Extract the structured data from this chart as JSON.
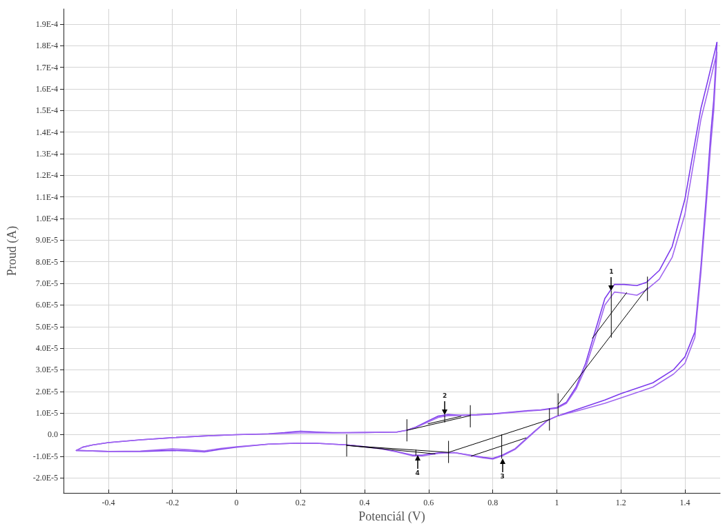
{
  "chart_data": {
    "type": "line",
    "xlabel": "Potenciál (V)",
    "ylabel": "Proud (A)",
    "xlim": [
      -0.54,
      1.51
    ],
    "ylim": [
      -2.7e-05,
      0.000197
    ],
    "xticks": [
      -0.4,
      -0.2,
      0,
      0.2,
      0.4,
      0.6,
      0.8,
      1,
      1.2,
      1.4
    ],
    "yticks": [
      {
        "value": -2e-05,
        "label": "-2.0E-5"
      },
      {
        "value": -1e-05,
        "label": "-1.0E-5"
      },
      {
        "value": 0,
        "label": "0.0"
      },
      {
        "value": 1e-05,
        "label": "1.0E-5"
      },
      {
        "value": 2e-05,
        "label": "2.0E-5"
      },
      {
        "value": 3e-05,
        "label": "3.0E-5"
      },
      {
        "value": 4e-05,
        "label": "4.0E-5"
      },
      {
        "value": 5e-05,
        "label": "5.0E-5"
      },
      {
        "value": 6e-05,
        "label": "6.0E-5"
      },
      {
        "value": 7e-05,
        "label": "7.0E-5"
      },
      {
        "value": 8e-05,
        "label": "8.0E-5"
      },
      {
        "value": 9e-05,
        "label": "9.0E-5"
      },
      {
        "value": 0.0001,
        "label": "1.0E-4"
      },
      {
        "value": 0.00011,
        "label": "1.1E-4"
      },
      {
        "value": 0.00012,
        "label": "1.2E-4"
      },
      {
        "value": 0.00013,
        "label": "1.3E-4"
      },
      {
        "value": 0.00014,
        "label": "1.4E-4"
      },
      {
        "value": 0.00015,
        "label": "1.5E-4"
      },
      {
        "value": 0.00016,
        "label": "1.6E-4"
      },
      {
        "value": 0.00017,
        "label": "1.7E-4"
      },
      {
        "value": 0.00018,
        "label": "1.8E-4"
      },
      {
        "value": 0.00019,
        "label": "1.9E-4"
      }
    ],
    "grid": true,
    "series": [
      {
        "color": "#7c3aed",
        "x": [
          -0.5,
          -0.48,
          -0.45,
          -0.4,
          -0.3,
          -0.2,
          -0.1,
          0,
          0.1,
          0.15,
          0.2,
          0.25,
          0.3,
          0.4,
          0.5,
          0.53,
          0.56,
          0.6,
          0.63,
          0.66,
          0.7,
          0.75,
          0.8,
          0.9,
          0.95,
          1.0,
          1.03,
          1.06,
          1.09,
          1.12,
          1.15,
          1.18,
          1.21,
          1.25,
          1.28,
          1.32,
          1.36,
          1.4,
          1.45,
          1.47,
          1.5
        ],
        "values": [
          -7.3e-06,
          -5.8e-06,
          -4.8e-06,
          -3.7e-06,
          -2.4e-06,
          -1.4e-06,
          -6e-07,
          0,
          4e-07,
          9e-07,
          1.6e-06,
          1.2e-06,
          9e-07,
          1e-06,
          1.2e-06,
          2e-06,
          3.5e-06,
          6.5e-06,
          8.6e-06,
          9.3e-06,
          9e-06,
          9.2e-06,
          9.6e-06,
          1.1e-05,
          1.15e-05,
          1.25e-05,
          1.5e-05,
          2.2e-05,
          3.3e-05,
          4.8e-05,
          6.3e-05,
          6.95e-05,
          6.95e-05,
          6.9e-05,
          7.05e-05,
          7.6e-05,
          8.7e-05,
          0.000109,
          0.000151,
          0.000163,
          0.0001815
        ]
      },
      {
        "color": "#7c3aed",
        "x": [
          -0.5,
          -0.4,
          -0.3,
          -0.2,
          -0.15,
          -0.1,
          -0.05,
          0,
          0.1,
          0.2,
          0.25,
          0.35,
          0.45,
          0.5,
          0.55,
          0.58,
          0.63,
          0.68,
          0.73,
          0.77,
          0.8,
          0.83,
          0.87,
          0.9,
          0.93,
          0.97,
          1.0,
          1.064,
          1.15,
          1.2,
          1.3,
          1.364,
          1.4,
          1.431,
          1.45,
          1.466,
          1.48,
          1.49,
          1.5
        ],
        "values": [
          -7.3e-06,
          -7.8e-06,
          -7.8e-06,
          -7.3e-06,
          -7.6e-06,
          -8e-06,
          -6.8e-06,
          -5.8e-06,
          -4.4e-06,
          -3.9e-06,
          -4e-06,
          -4.8e-06,
          -6.4e-06,
          -7.8e-06,
          -9.5e-06,
          -9.5e-06,
          -8.5e-06,
          -8.3e-06,
          -9.5e-06,
          -1.05e-05,
          -1.1e-05,
          -9.5e-06,
          -6.5e-06,
          -2.5e-06,
          1.5e-06,
          6.5e-06,
          8.5e-06,
          1.17e-05,
          1.6e-05,
          1.9e-05,
          2.4e-05,
          3e-05,
          3.6e-05,
          4.75e-05,
          7.8e-05,
          0.000109,
          0.000138,
          0.000155,
          0.0001815
        ]
      },
      {
        "color": "#a066f0",
        "x": [
          -0.5,
          -0.48,
          -0.45,
          -0.4,
          -0.3,
          -0.2,
          -0.1,
          0,
          0.1,
          0.15,
          0.2,
          0.25,
          0.3,
          0.4,
          0.5,
          0.53,
          0.56,
          0.6,
          0.63,
          0.66,
          0.7,
          0.75,
          0.8,
          0.9,
          0.95,
          1.0,
          1.03,
          1.06,
          1.09,
          1.12,
          1.15,
          1.18,
          1.21,
          1.25,
          1.28,
          1.32,
          1.36,
          1.4,
          1.45,
          1.47,
          1.5
        ],
        "values": [
          -7.3e-06,
          -5.8e-06,
          -4.8e-06,
          -3.7e-06,
          -2.4e-06,
          -1.4e-06,
          -6e-07,
          0,
          3e-07,
          6e-07,
          8e-07,
          8e-07,
          8e-07,
          1e-06,
          1.2e-06,
          2e-06,
          3.3e-06,
          6e-06,
          8e-06,
          8.8e-06,
          8.9e-06,
          9.1e-06,
          9.5e-06,
          1.08e-05,
          1.13e-05,
          1.22e-05,
          1.45e-05,
          2.1e-05,
          3.1e-05,
          4.5e-05,
          6e-05,
          6.6e-05,
          6.55e-05,
          6.45e-05,
          6.7e-05,
          7.2e-05,
          8.2e-05,
          0.000102,
          0.000146,
          0.000158,
          0.000177
        ]
      },
      {
        "color": "#a066f0",
        "x": [
          -0.5,
          -0.4,
          -0.3,
          -0.2,
          -0.15,
          -0.1,
          -0.05,
          0,
          0.1,
          0.2,
          0.25,
          0.35,
          0.45,
          0.5,
          0.55,
          0.58,
          0.63,
          0.68,
          0.73,
          0.77,
          0.8,
          0.83,
          0.87,
          0.9,
          0.93,
          0.97,
          1.0,
          1.064,
          1.15,
          1.2,
          1.3,
          1.364,
          1.4,
          1.431,
          1.45,
          1.466,
          1.48,
          1.49,
          1.5
        ],
        "values": [
          -7.3e-06,
          -7.8e-06,
          -7.6e-06,
          -6.6e-06,
          -7e-06,
          -7.5e-06,
          -6.4e-06,
          -5.6e-06,
          -4.4e-06,
          -3.9e-06,
          -4e-06,
          -4.8e-06,
          -6.5e-06,
          -8e-06,
          -9.8e-06,
          -9.8e-06,
          -8.7e-06,
          -8.3e-06,
          -9.7e-06,
          -1.08e-05,
          -1.13e-05,
          -9.8e-06,
          -6.8e-06,
          -2.8e-06,
          1.2e-06,
          6.5e-06,
          8.5e-06,
          1.1e-05,
          1.45e-05,
          1.7e-05,
          2.2e-05,
          2.8e-05,
          3.3e-05,
          4.5e-05,
          7.5e-05,
          0.000105,
          0.000133,
          0.00015,
          0.000177
        ]
      },
      {
        "color": "#000000",
        "x": [
          1.004,
          1.283
        ],
        "values": [
          1.4e-05,
          6.8e-05
        ]
      },
      {
        "color": "#000000",
        "x": [
          1.111,
          1.218
        ],
        "values": [
          4.46e-05,
          6.57e-05
        ]
      },
      {
        "color": "#000000",
        "x": [
          1.17,
          1.17
        ],
        "values": [
          4.5e-05,
          6.65e-05
        ]
      },
      {
        "color": "#000000",
        "x": [
          0.532,
          0.73
        ],
        "values": [
          2e-06,
          8.8e-06
        ]
      },
      {
        "color": "#000000",
        "x": [
          0.598,
          0.701
        ],
        "values": [
          5e-06,
          8.5e-06
        ]
      },
      {
        "color": "#000000",
        "x": [
          0.65,
          0.65
        ],
        "values": [
          5.7e-06,
          8.8e-06
        ]
      },
      {
        "color": "#000000",
        "x": [
          0.344,
          0.662,
          0.977
        ],
        "values": [
          -5e-06,
          -8.2e-06,
          7e-06
        ]
      },
      {
        "color": "#000000",
        "x": [
          0.733,
          0.904
        ],
        "values": [
          -9.9e-06,
          -1.5e-06
        ]
      },
      {
        "color": "#000000",
        "x": [
          0.828,
          0.828
        ],
        "values": [
          0,
          -1.1e-05
        ]
      },
      {
        "color": "#000000",
        "x": [
          0.344,
          0.62
        ],
        "values": [
          -5e-06,
          -8.9e-06
        ]
      },
      {
        "color": "#000000",
        "x": [
          0.56,
          0.56
        ],
        "values": [
          -7.1e-06,
          -9.5e-06
        ]
      },
      {
        "color": "#000000",
        "x": [
          1.004,
          1.004
        ],
        "values": [
          9e-06,
          1.9e-05
        ]
      },
      {
        "color": "#000000",
        "x": [
          1.283,
          1.283
        ],
        "values": [
          6.2e-05,
          7.3e-05
        ]
      },
      {
        "color": "#000000",
        "x": [
          0.532,
          0.532
        ],
        "values": [
          -3e-06,
          7e-06
        ]
      },
      {
        "color": "#000000",
        "x": [
          0.73,
          0.73
        ],
        "values": [
          3.5e-06,
          1.35e-05
        ]
      },
      {
        "color": "#000000",
        "x": [
          0.662,
          0.662
        ],
        "values": [
          -1.3e-05,
          -3e-06
        ]
      },
      {
        "color": "#000000",
        "x": [
          0.977,
          0.977
        ],
        "values": [
          2e-06,
          1.2e-05
        ]
      },
      {
        "color": "#000000",
        "x": [
          0.344,
          0.344
        ],
        "values": [
          -1e-05,
          0
        ]
      }
    ],
    "annotations": [
      {
        "text": "1",
        "x": 1.17,
        "y": 6.65e-05
      },
      {
        "text": "2",
        "x": 0.65,
        "y": 9e-06
      },
      {
        "text": "3",
        "x": 0.83,
        "y": -1.1e-05
      },
      {
        "text": "4",
        "x": 0.565,
        "y": -9.5e-06
      }
    ]
  }
}
